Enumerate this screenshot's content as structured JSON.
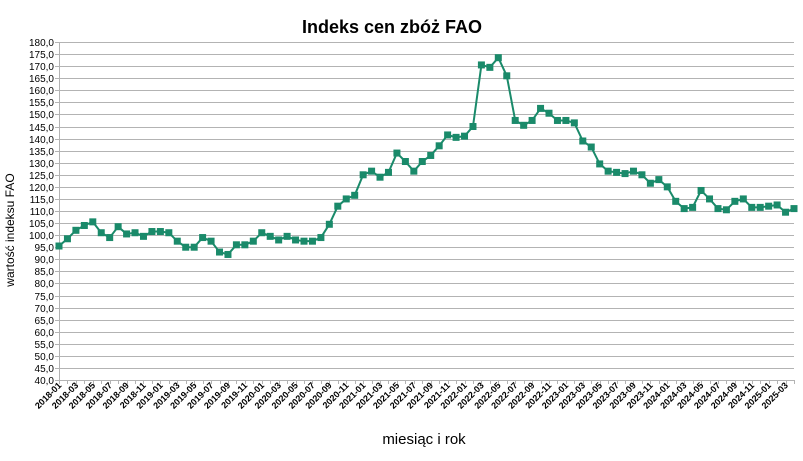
{
  "chart_data": {
    "type": "line",
    "title": "Indeks cen zbóż FAO",
    "xlabel": "miesiąc i rok",
    "ylabel": "wartość indeksu FAO",
    "ylim": [
      40,
      180
    ],
    "y_tick_step": 5,
    "grid": true,
    "legend": "none",
    "x": [
      "2018-01",
      "2018-02",
      "2018-03",
      "2018-04",
      "2018-05",
      "2018-06",
      "2018-07",
      "2018-08",
      "2018-09",
      "2018-10",
      "2018-11",
      "2018-12",
      "2019-01",
      "2019-02",
      "2019-03",
      "2019-04",
      "2019-05",
      "2019-06",
      "2019-07",
      "2019-08",
      "2019-09",
      "2019-10",
      "2019-11",
      "2019-12",
      "2020-01",
      "2020-02",
      "2020-03",
      "2020-04",
      "2020-05",
      "2020-06",
      "2020-07",
      "2020-08",
      "2020-09",
      "2020-10",
      "2020-11",
      "2020-12",
      "2021-01",
      "2021-02",
      "2021-03",
      "2021-04",
      "2021-05",
      "2021-06",
      "2021-07",
      "2021-08",
      "2021-09",
      "2021-10",
      "2021-11",
      "2021-12",
      "2022-01",
      "2022-02",
      "2022-03",
      "2022-04",
      "2022-05",
      "2022-06",
      "2022-07",
      "2022-08",
      "2022-09",
      "2022-10",
      "2022-11",
      "2022-12",
      "2023-01",
      "2023-02",
      "2023-03",
      "2023-04",
      "2023-05",
      "2023-06",
      "2023-07",
      "2023-08",
      "2023-09",
      "2023-10",
      "2023-11",
      "2023-12",
      "2024-01",
      "2024-02",
      "2024-03",
      "2024-04",
      "2024-05",
      "2024-06",
      "2024-07",
      "2024-08",
      "2024-09",
      "2024-10",
      "2024-11",
      "2024-12",
      "2025-01",
      "2025-02",
      "2025-03",
      "2025-04"
    ],
    "x_tick_labels": [
      "2018-01",
      "2018-03",
      "2018-05",
      "2018-07",
      "2018-09",
      "2018-11",
      "2019-01",
      "2019-03",
      "2019-05",
      "2019-07",
      "2019-09",
      "2019-11",
      "2020-01",
      "2020-03",
      "2020-05",
      "2020-07",
      "2020-09",
      "2020-11",
      "2021-01",
      "2021-03",
      "2021-05",
      "2021-07",
      "2021-09",
      "2021-11",
      "2022-01",
      "2022-03",
      "2022-05",
      "2022-07",
      "2022-09",
      "2022-11",
      "2023-01",
      "2023-03",
      "2023-05",
      "2023-07",
      "2023-09",
      "2023-11",
      "2024-01",
      "2024-03",
      "2024-05",
      "2024-07",
      "2024-09",
      "2024-11",
      "2025-01",
      "2025-03"
    ],
    "series": [
      {
        "color": "#1a8a6a",
        "values": [
          95.5,
          98.5,
          102.0,
          104.0,
          105.5,
          101.0,
          99.0,
          103.5,
          100.5,
          101.0,
          99.5,
          101.5,
          101.5,
          101.0,
          97.5,
          95.0,
          95.0,
          99.0,
          97.5,
          93.0,
          92.0,
          96.0,
          96.0,
          97.5,
          101.0,
          99.5,
          98.0,
          99.5,
          98.0,
          97.5,
          97.5,
          99.0,
          104.5,
          112.0,
          115.0,
          116.5,
          125.0,
          126.5,
          124.0,
          126.0,
          134.0,
          130.5,
          126.5,
          130.5,
          133.0,
          137.0,
          141.5,
          140.5,
          141.0,
          145.0,
          170.5,
          169.5,
          173.5,
          166.0,
          147.5,
          145.5,
          147.5,
          152.5,
          150.5,
          147.5,
          147.5,
          146.5,
          139.0,
          136.5,
          129.5,
          126.5,
          126.0,
          125.5,
          126.5,
          125.0,
          121.5,
          123.0,
          120.0,
          114.0,
          111.0,
          111.5,
          118.5,
          115.0,
          111.0,
          110.5,
          114.0,
          115.0,
          111.5,
          111.5,
          112.0,
          112.5,
          109.5,
          111.0
        ]
      }
    ]
  }
}
